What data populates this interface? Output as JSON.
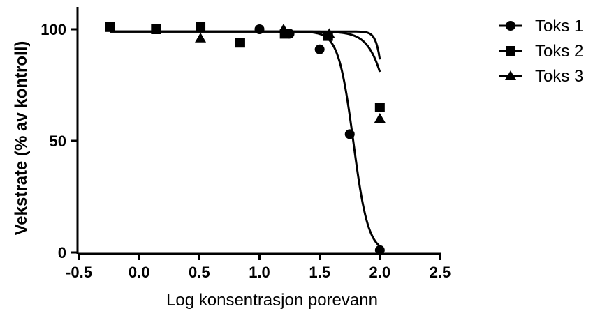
{
  "chart_data": {
    "type": "scatter",
    "title": "",
    "xlabel": "Log konsentrasjon porevann",
    "ylabel": "Vekstrate (% av kontroll)",
    "xlim": [
      -0.5,
      2.5
    ],
    "ylim": [
      0,
      100
    ],
    "x_ticks": [
      "-0.5",
      "0.0",
      "0.5",
      "1.0",
      "1.5",
      "2.0",
      "2.5"
    ],
    "y_ticks": [
      "0",
      "50",
      "100"
    ],
    "grid": false,
    "legend_position": "top-right",
    "series": [
      {
        "name": "Toks 1",
        "marker": "circle",
        "color": "#000000",
        "points": [
          [
            1.0,
            100
          ],
          [
            1.25,
            98
          ],
          [
            1.5,
            91
          ],
          [
            1.75,
            53
          ],
          [
            2.0,
            1
          ]
        ],
        "fit_curve": {
          "top": 99,
          "bottom": 0,
          "log_ic50": 1.78,
          "hill": 7.0
        }
      },
      {
        "name": "Toks 2",
        "marker": "square",
        "color": "#000000",
        "points": [
          [
            -0.24,
            101
          ],
          [
            0.14,
            100
          ],
          [
            0.51,
            101
          ],
          [
            0.84,
            94
          ],
          [
            1.21,
            98
          ],
          [
            1.57,
            97
          ],
          [
            2.0,
            65
          ]
        ],
        "fit_curve": {
          "top": 99,
          "bottom": 0,
          "log_ic50": 2.13,
          "hill": 5.0
        }
      },
      {
        "name": "Toks 3",
        "marker": "triangle",
        "color": "#000000",
        "points": [
          [
            0.51,
            96
          ],
          [
            1.2,
            100
          ],
          [
            1.58,
            98
          ],
          [
            2.0,
            60
          ]
        ],
        "fit_curve": {
          "top": 99,
          "bottom": 0,
          "log_ic50": 2.06,
          "hill": 14.0
        }
      }
    ]
  }
}
